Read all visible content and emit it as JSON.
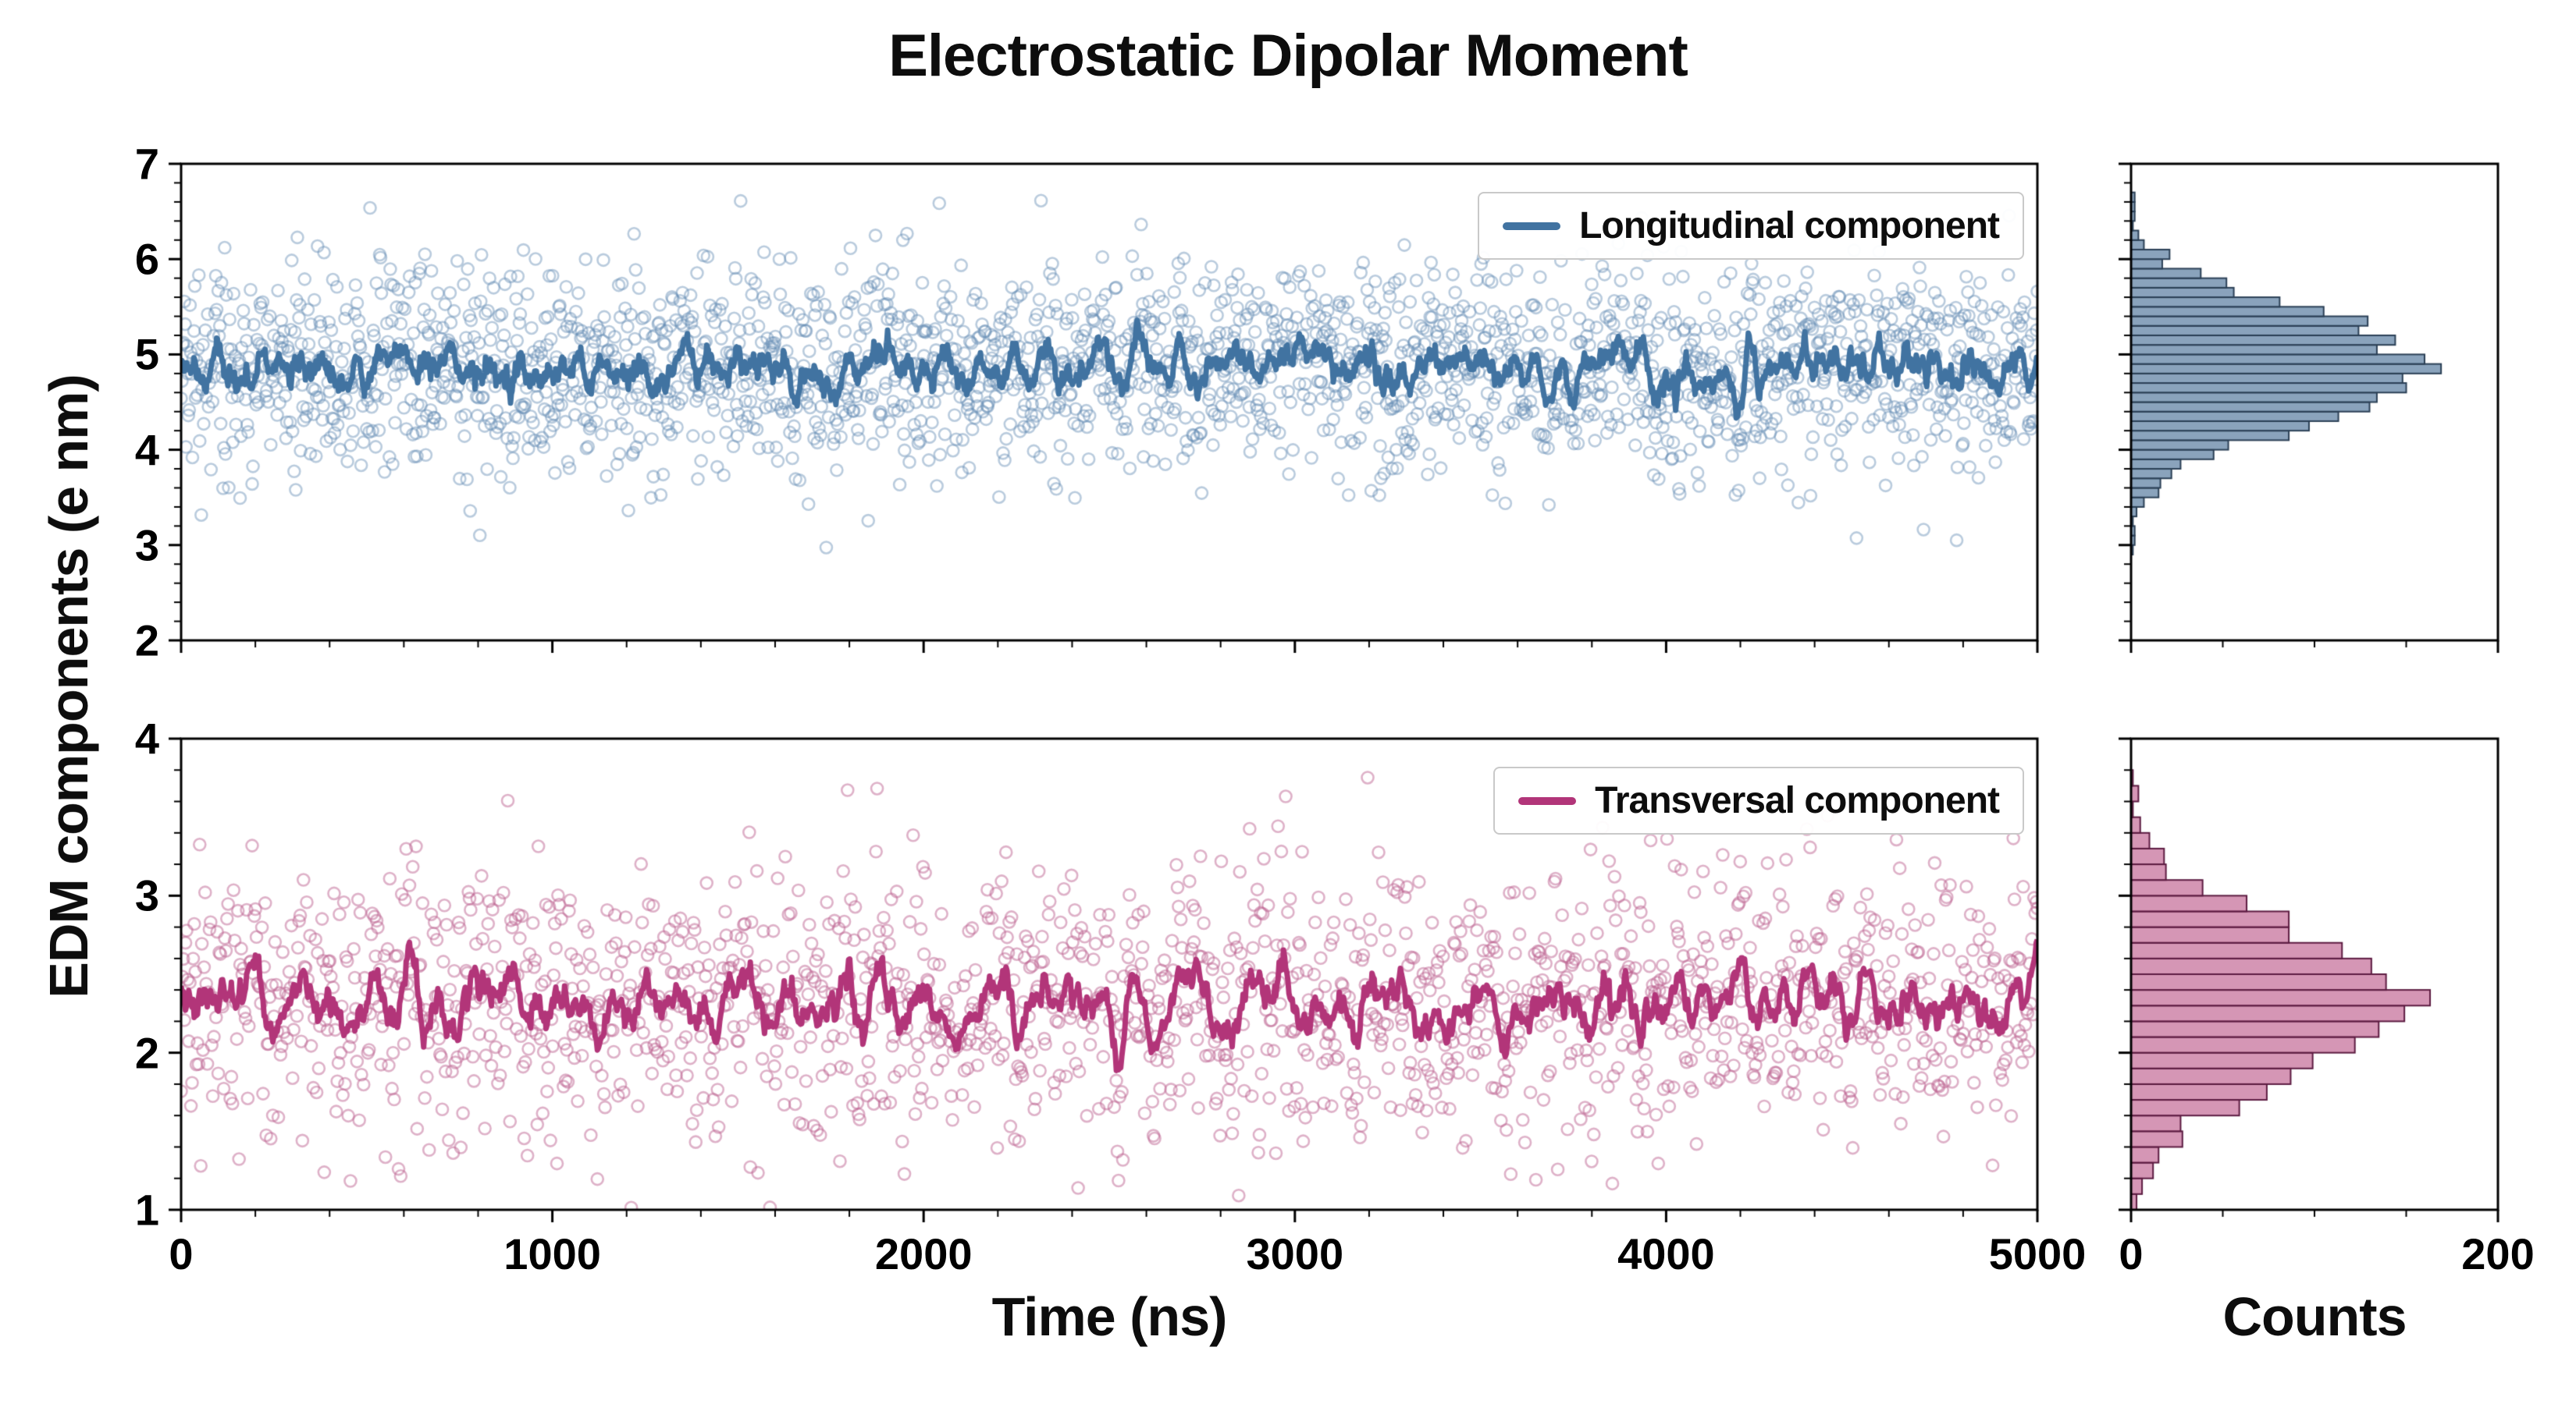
{
  "title": "Electrostatic Dipolar Moment",
  "axis": {
    "xlabel": "Time (ns)",
    "ylabel": "EDM components (e nm)",
    "counts_label": "Counts"
  },
  "seed": 20,
  "chart_data": [
    {
      "type": "scatter+line",
      "panel": "top",
      "name": "Longitudinal component",
      "marker": "open-circle",
      "color": "#4173a1",
      "scatter_color": "rgba(100,140,180,0.45)",
      "hist_fill": "rgba(125,153,181,0.9)",
      "hist_edge": "#2a3f55",
      "x_range": [
        0,
        5000
      ],
      "y_range": [
        2,
        7
      ],
      "x_ticks": [
        0,
        1000,
        2000,
        3000,
        4000,
        5000
      ],
      "y_ticks": [
        2,
        3,
        4,
        5,
        6,
        7
      ],
      "x_minor_step": 200,
      "y_minor_step": 0.2,
      "distribution": "gaussian",
      "mean": 4.85,
      "std": 0.55,
      "n_points": 2300,
      "smoothing_window": 13,
      "histogram": {
        "orientation": "horizontal",
        "x_range": [
          0,
          200
        ],
        "x_ticks": [
          0,
          200
        ],
        "x_minor_step": 50,
        "bin_width": 0.1
      }
    },
    {
      "type": "scatter+line",
      "panel": "bottom",
      "name": "Transversal component",
      "marker": "open-circle",
      "color": "#b23579",
      "scatter_color": "rgba(190,100,145,0.5)",
      "hist_fill": "rgba(203,124,162,0.8)",
      "hist_edge": "#5c1b41",
      "x_range": [
        0,
        5000
      ],
      "y_range": [
        1,
        4
      ],
      "x_ticks": [
        0,
        1000,
        2000,
        3000,
        4000,
        5000
      ],
      "y_ticks": [
        1,
        2,
        3,
        4
      ],
      "x_minor_step": 200,
      "y_minor_step": 0.2,
      "distribution": "gaussian",
      "mean": 2.3,
      "std": 0.45,
      "n_points": 1700,
      "smoothing_window": 13,
      "histogram": {
        "orientation": "horizontal",
        "x_range": [
          0,
          200
        ],
        "x_ticks": [
          0,
          200
        ],
        "x_minor_step": 50,
        "bin_width": 0.1
      }
    }
  ]
}
